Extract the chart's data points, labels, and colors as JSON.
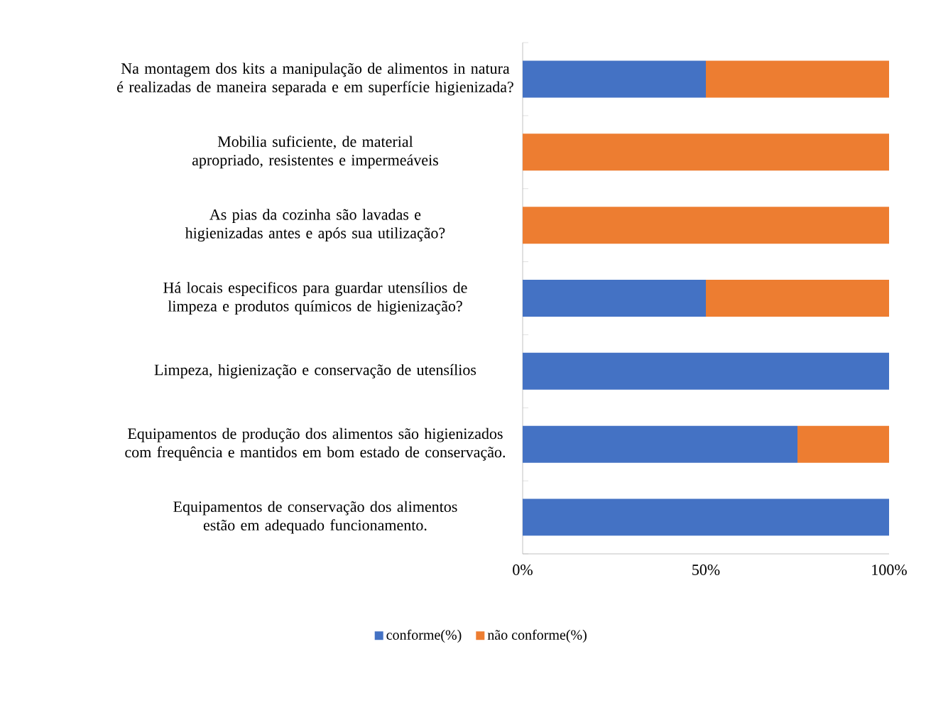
{
  "chart_data": {
    "type": "bar",
    "orientation": "horizontal",
    "stacked": true,
    "legend": "bottom",
    "grid": false,
    "categories": [
      "Na montagem dos kits a manipulação de alimentos in natura é realizadas de maneira separada e em superfície higienizada?",
      "Mobilia suficiente, de material apropriado, resistentes e impermeáveis",
      "As pias da cozinha são lavadas e higienizadas antes e após sua utilização?",
      "Há locais especificos para guardar utensílios de limpeza e produtos químicos de higienização?",
      "Limpeza, higienização e conservação de utensílios",
      "Equipamentos de produção dos alimentos são higienizados com frequência e mantidos em bom estado de conservação.",
      "Equipamentos de conservação dos alimentos estão em adequado funcionamento."
    ],
    "series": [
      {
        "name": "conforme(%)",
        "color": "#4472c4",
        "values": [
          50,
          0,
          0,
          50,
          100,
          75,
          100
        ]
      },
      {
        "name": "não conforme(%)",
        "color": "#ed7d31",
        "values": [
          50,
          100,
          100,
          50,
          0,
          25,
          0
        ]
      }
    ],
    "xlim": [
      0,
      100
    ],
    "xticks": [
      {
        "value": 0,
        "label": "0%"
      },
      {
        "value": 50,
        "label": "50%"
      },
      {
        "value": 100,
        "label": "100%"
      }
    ]
  }
}
